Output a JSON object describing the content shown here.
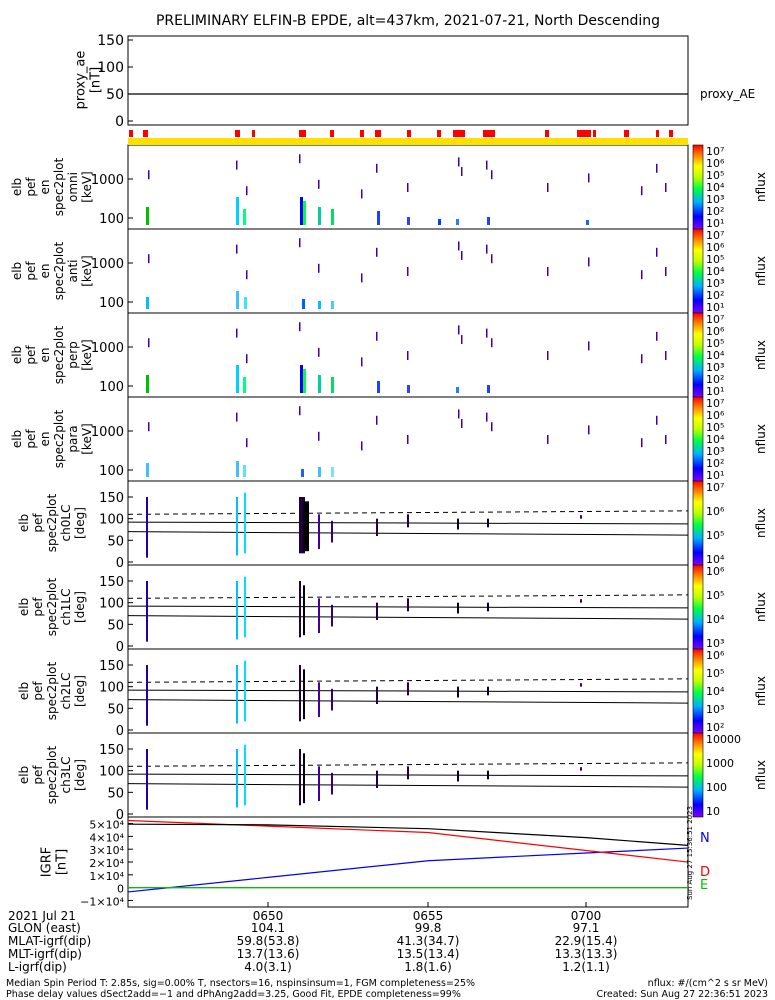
{
  "title": "PRELIMINARY ELFIN-B EPDE, alt=437km, 2021-07-21, North Descending",
  "panels": {
    "ae": {
      "ylabel": [
        "proxy_ae",
        "[nT]"
      ],
      "ticks": [
        "150",
        "100",
        "50",
        "0"
      ],
      "legend": "proxy_AE",
      "value_nT": 50,
      "ylim": [
        0,
        150
      ]
    },
    "spec": [
      {
        "key": "omni",
        "ylabel": [
          "elb",
          "pef",
          "en",
          "spec2plot",
          "omni",
          "[keV]"
        ],
        "ticks": [
          "1000",
          "100"
        ]
      },
      {
        "key": "anti",
        "ylabel": [
          "elb",
          "pef",
          "en",
          "spec2plot",
          "anti",
          "[keV]"
        ],
        "ticks": [
          "1000",
          "100"
        ]
      },
      {
        "key": "perp",
        "ylabel": [
          "elb",
          "pef",
          "en",
          "spec2plot",
          "perp",
          "[keV]"
        ],
        "ticks": [
          "1000",
          "100"
        ]
      },
      {
        "key": "para",
        "ylabel": [
          "elb",
          "pef",
          "en",
          "spec2plot",
          "para",
          "[keV]"
        ],
        "ticks": [
          "1000",
          "100"
        ]
      },
      {
        "key": "ch0LC",
        "ylabel": [
          "elb",
          "pef",
          "spec2plot",
          "ch0LC",
          "[deg]"
        ],
        "ticks": [
          "150",
          "100",
          "50",
          "0"
        ]
      },
      {
        "key": "ch1LC",
        "ylabel": [
          "elb",
          "pef",
          "spec2plot",
          "ch1LC",
          "[deg]"
        ],
        "ticks": [
          "150",
          "100",
          "50",
          "0"
        ]
      },
      {
        "key": "ch2LC",
        "ylabel": [
          "elb",
          "pef",
          "spec2plot",
          "ch2LC",
          "[deg]"
        ],
        "ticks": [
          "150",
          "100",
          "50",
          "0"
        ]
      },
      {
        "key": "ch3LC",
        "ylabel": [
          "elb",
          "pef",
          "spec2plot",
          "ch3LC",
          "[deg]"
        ],
        "ticks": [
          "150",
          "100",
          "50",
          "0"
        ]
      }
    ],
    "igrf": {
      "ylabel": [
        "IGRF",
        "[nT]"
      ],
      "ticks": [
        "5×10⁴",
        "4×10⁴",
        "3×10⁴",
        "2×10⁴",
        "1×10⁴",
        "0",
        "−1×10⁴"
      ],
      "legend": [
        {
          "label": "N",
          "color": "#0000ff"
        },
        {
          "label": "D",
          "color": "#ff0000"
        },
        {
          "label": "E",
          "color": "#00c000"
        }
      ],
      "stamp": "Sun Aug 27 15:36:51 2023"
    }
  },
  "colorbars": [
    {
      "ticks": [
        "10⁷",
        "10⁶",
        "10⁵",
        "10⁴",
        "10³",
        "10²",
        "10¹"
      ],
      "label": "nflux"
    },
    {
      "ticks": [
        "10⁷",
        "10⁶",
        "10⁵",
        "10⁴",
        "10³",
        "10²",
        "10¹"
      ],
      "label": "nflux"
    },
    {
      "ticks": [
        "10⁷",
        "10⁶",
        "10⁵",
        "10⁴",
        "10³",
        "10²",
        "10¹"
      ],
      "label": "nflux"
    },
    {
      "ticks": [
        "10⁷",
        "10⁶",
        "10⁵",
        "10⁴",
        "10³",
        "10²",
        "10¹"
      ],
      "label": "nflux"
    },
    {
      "ticks": [
        "10⁷",
        "10⁶",
        "10⁵",
        "10⁴"
      ],
      "label": "nflux"
    },
    {
      "ticks": [
        "10⁶",
        "10⁵",
        "10⁴",
        "10³"
      ],
      "label": "nflux"
    },
    {
      "ticks": [
        "10⁶",
        "10⁵",
        "10⁴",
        "10³",
        "10²"
      ],
      "label": "nflux"
    },
    {
      "ticks": [
        "10000",
        "1000",
        "100",
        "10"
      ],
      "label": "nflux"
    }
  ],
  "xaxis": {
    "labels": [
      "2021 Jul 21",
      "GLON (east)",
      "MLAT-igrf(dip)",
      "MLT-igrf(dip)",
      "L-igrf(dip)"
    ],
    "columns": [
      {
        "time": "0650",
        "values": [
          "104.1",
          "59.8(53.8)",
          "13.7(13.6)",
          "4.0(3.1)"
        ]
      },
      {
        "time": "0655",
        "values": [
          "99.8",
          "41.3(34.7)",
          "13.5(13.4)",
          "1.8(1.6)"
        ]
      },
      {
        "time": "0700",
        "values": [
          "97.1",
          "22.9(15.4)",
          "13.3(13.3)",
          "1.2(1.1)"
        ]
      }
    ]
  },
  "footer": {
    "line1": "Median Spin Period T: 2.85s, sig=0.00% T, nsectors=16, nspinsinsum=1, FGM completeness=25%",
    "line2": "Phase delay values dSect2add=−1 and dPhAng2add=3.25, Good Fit, EPDE completeness=99%",
    "units": "nflux: #/(cm^2 s sr MeV)",
    "created": "Created: Sun Aug 27 22:36:51 2023"
  },
  "chart_data": {
    "type": "line",
    "title": "PRELIMINARY ELFIN-B EPDE, alt=437km, 2021-07-21, North Descending",
    "x_unit": "UT",
    "x": [
      "0650",
      "0655",
      "0700"
    ],
    "series": [
      {
        "name": "proxy_AE",
        "values": [
          50,
          50,
          50
        ]
      },
      {
        "name": "N",
        "values": [
          0.8,
          2.1,
          2.7
        ]
      },
      {
        "name": "D",
        "values": [
          4.8,
          4.3,
          2.9
        ]
      },
      {
        "name": "E",
        "values": [
          0,
          0,
          0
        ]
      }
    ],
    "igrf_value_unit": "10^4 nT",
    "grid": false,
    "legend": "right"
  }
}
